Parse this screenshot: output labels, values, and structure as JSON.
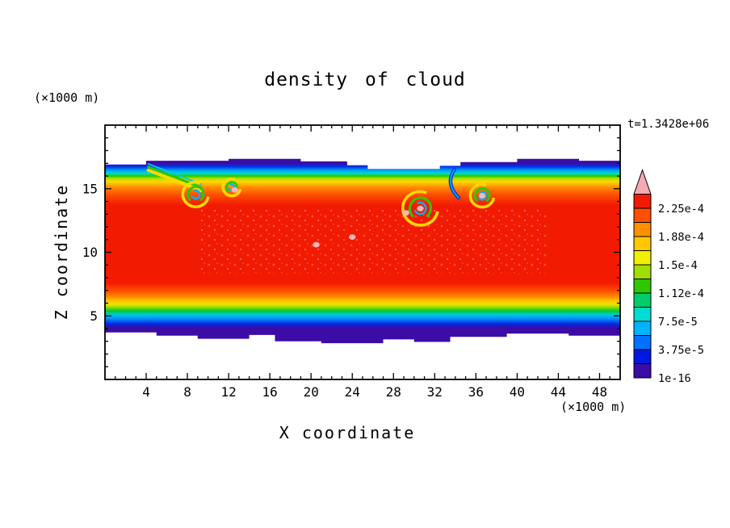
{
  "page": {
    "background": "#ffffff"
  },
  "chart_data": {
    "type": "heatmap",
    "title": "density of cloud",
    "xlabel": "X coordinate",
    "ylabel": "Z coordinate",
    "axis_units_x": "(×1000 m)",
    "axis_units_y": "(×1000 m)",
    "time": "t=1.3428e+06",
    "xlim": [
      0,
      50
    ],
    "ylim": [
      0,
      20
    ],
    "x_major_ticks": [
      4,
      8,
      12,
      16,
      20,
      24,
      28,
      32,
      36,
      40,
      44,
      48
    ],
    "y_major_ticks": [
      5,
      10,
      15
    ],
    "x_minor_step": 1,
    "y_minor_step": 1,
    "grid": false,
    "legend_position": "right-colorbar",
    "field": {
      "description": "cloud density field between z≈3 and z≈17.4 (×1000 m); horizontally layered: dark-violet edges, blue/cyan/green/yellow transition bands, broad red core z≈7–14, Kelvin-Helmholtz vortices near z≈13–16",
      "z_top_edge": [
        [
          0,
          16.9
        ],
        [
          4,
          16.9
        ],
        [
          4,
          17.2
        ],
        [
          12,
          17.2
        ],
        [
          12,
          17.35
        ],
        [
          19,
          17.35
        ],
        [
          19,
          17.15
        ],
        [
          23.5,
          17.15
        ],
        [
          23.5,
          16.85
        ],
        [
          25.5,
          16.85
        ],
        [
          25.5,
          16.55
        ],
        [
          32.5,
          16.55
        ],
        [
          32.5,
          16.8
        ],
        [
          34.5,
          16.8
        ],
        [
          34.5,
          17.1
        ],
        [
          40,
          17.1
        ],
        [
          40,
          17.35
        ],
        [
          46,
          17.35
        ],
        [
          46,
          17.2
        ],
        [
          50,
          17.2
        ]
      ],
      "z_bottom_edge": [
        [
          0,
          3.7
        ],
        [
          5,
          3.7
        ],
        [
          5,
          3.45
        ],
        [
          9,
          3.45
        ],
        [
          9,
          3.2
        ],
        [
          14,
          3.2
        ],
        [
          14,
          3.5
        ],
        [
          16.5,
          3.5
        ],
        [
          16.5,
          3.0
        ],
        [
          21,
          3.0
        ],
        [
          21,
          2.85
        ],
        [
          27,
          2.85
        ],
        [
          27,
          3.15
        ],
        [
          30,
          3.15
        ],
        [
          30,
          2.95
        ],
        [
          33.5,
          2.95
        ],
        [
          33.5,
          3.35
        ],
        [
          39,
          3.35
        ],
        [
          39,
          3.6
        ],
        [
          45,
          3.6
        ],
        [
          45,
          3.45
        ],
        [
          50,
          3.45
        ]
      ],
      "layer_stops": [
        [
          17.5,
          "#3c0ca6"
        ],
        [
          17.0,
          "#3c0ca6"
        ],
        [
          16.75,
          "#0030e6"
        ],
        [
          16.45,
          "#00a0f6"
        ],
        [
          16.2,
          "#00dcc8"
        ],
        [
          16.0,
          "#28c800"
        ],
        [
          15.8,
          "#b4e000"
        ],
        [
          15.55,
          "#ffd800"
        ],
        [
          15.15,
          "#ff9000"
        ],
        [
          14.55,
          "#ff5000"
        ],
        [
          13.7,
          "#f21a00"
        ],
        [
          7.6,
          "#f21a00"
        ],
        [
          6.95,
          "#ff5000"
        ],
        [
          6.5,
          "#ff8c00"
        ],
        [
          6.15,
          "#ffc800"
        ],
        [
          5.9,
          "#e6e600"
        ],
        [
          5.65,
          "#8cd800"
        ],
        [
          5.38,
          "#00c83c"
        ],
        [
          5.08,
          "#00c8dc"
        ],
        [
          4.72,
          "#0082ff"
        ],
        [
          4.38,
          "#002ae0"
        ],
        [
          4.05,
          "#3c0ca6"
        ],
        [
          2.8,
          "#3c0ca6"
        ]
      ]
    },
    "features": [
      {
        "type": "tongue",
        "pts": [
          [
            4.2,
            16.45
          ],
          [
            7.0,
            15.6
          ],
          [
            9.3,
            14.85
          ]
        ]
      },
      {
        "type": "vortex",
        "x": 8.8,
        "z": 14.55,
        "r": 1.25
      },
      {
        "type": "vortex",
        "x": 12.3,
        "z": 15.1,
        "r": 0.85
      },
      {
        "type": "vortex",
        "x": 30.6,
        "z": 13.45,
        "r": 1.7
      },
      {
        "type": "vortex",
        "x": 36.6,
        "z": 14.45,
        "r": 1.15
      },
      {
        "type": "plume",
        "pts": [
          [
            33.9,
            16.5
          ],
          [
            33.0,
            15.4
          ],
          [
            34.3,
            14.3
          ]
        ]
      },
      {
        "type": "patch",
        "x": 30.6,
        "z": 13.45
      },
      {
        "type": "patch",
        "x": 36.6,
        "z": 14.45
      },
      {
        "type": "patch",
        "x": 29.2,
        "z": 13.1
      },
      {
        "type": "patch",
        "x": 12.6,
        "z": 14.9
      },
      {
        "type": "patch",
        "x": 20.5,
        "z": 10.6
      },
      {
        "type": "patch",
        "x": 24.0,
        "z": 11.2
      }
    ],
    "colorbar": {
      "levels": [
        "1e-16",
        "3.75e-5",
        "7.5e-5",
        "1.12e-4",
        "1.5e-4",
        "1.88e-4",
        "2.25e-4"
      ],
      "box_colors": [
        "#3c0ca6",
        "#0018e0",
        "#0070ff",
        "#00b4ff",
        "#00dcd2",
        "#00cd69",
        "#2dc800",
        "#a0e000",
        "#f0f000",
        "#ffc800",
        "#ff9000",
        "#ff5000",
        "#f21a00"
      ],
      "overflow_color": "#f2aab4",
      "frame_color": "#000000"
    },
    "colors": {
      "frame": "#000000",
      "text": "#000000",
      "background": "#ffffff"
    }
  }
}
